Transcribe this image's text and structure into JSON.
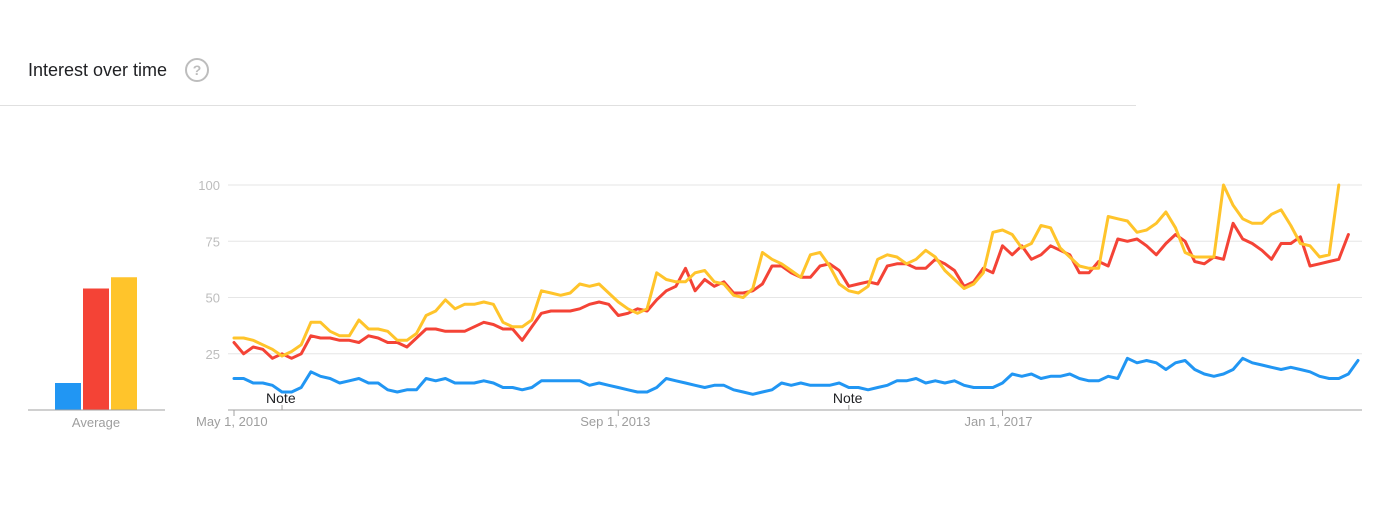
{
  "header": {
    "title": "Interest over time",
    "help_icon": "?"
  },
  "colors": {
    "blue": "#2196f3",
    "red": "#f44336",
    "yellow": "#ffc42b",
    "grid": "#e6e6e6",
    "axis": "#a0a0a0"
  },
  "averages": {
    "label": "Average",
    "values": [
      12,
      54,
      59
    ]
  },
  "notes": [
    {
      "label": "Note",
      "date": "2010-10"
    },
    {
      "label": "Note",
      "date": "2015-09"
    }
  ],
  "chart_data": {
    "type": "line",
    "x_start": "2010-05",
    "x_interval": "month",
    "xtick_labels": [
      {
        "label": "May 1, 2010",
        "date": "2010-05"
      },
      {
        "label": "Sep 1, 2013",
        "date": "2013-09"
      },
      {
        "label": "Jan 1, 2017",
        "date": "2017-01"
      }
    ],
    "yticks": [
      25,
      50,
      75,
      100
    ],
    "ylim": [
      0,
      100
    ],
    "grid": true,
    "series": [
      {
        "color": "#2196f3",
        "values": [
          14,
          14,
          12,
          12,
          11,
          8,
          8,
          10,
          17,
          15,
          14,
          12,
          13,
          14,
          12,
          12,
          9,
          8,
          9,
          9,
          14,
          13,
          14,
          12,
          12,
          12,
          13,
          12,
          10,
          10,
          9,
          10,
          13,
          13,
          13,
          13,
          13,
          11,
          12,
          11,
          10,
          9,
          8,
          8,
          10,
          14,
          13,
          12,
          11,
          10,
          11,
          11,
          9,
          8,
          7,
          8,
          9,
          12,
          11,
          12,
          11,
          11,
          11,
          12,
          10,
          10,
          9,
          10,
          11,
          13,
          13,
          14,
          12,
          13,
          12,
          13,
          11,
          10,
          10,
          10,
          12,
          16,
          15,
          16,
          14,
          15,
          15,
          16,
          14,
          13,
          13,
          15,
          14,
          23,
          21,
          22,
          21,
          18,
          21,
          22,
          18,
          16,
          15,
          16,
          18,
          23,
          21,
          20,
          19,
          18,
          19,
          18,
          17,
          15,
          14,
          14,
          16,
          22
        ]
      },
      {
        "color": "#f44336",
        "values": [
          30,
          25,
          28,
          27,
          23,
          25,
          23,
          25,
          33,
          32,
          32,
          31,
          31,
          30,
          33,
          32,
          30,
          30,
          28,
          32,
          36,
          36,
          35,
          35,
          35,
          37,
          39,
          38,
          36,
          36,
          31,
          37,
          43,
          44,
          44,
          44,
          45,
          47,
          48,
          47,
          42,
          43,
          45,
          44,
          49,
          53,
          55,
          63,
          53,
          58,
          55,
          57,
          52,
          52,
          53,
          56,
          64,
          64,
          61,
          59,
          59,
          64,
          65,
          62,
          55,
          56,
          57,
          56,
          64,
          65,
          65,
          63,
          63,
          67,
          65,
          62,
          55,
          57,
          63,
          61,
          73,
          69,
          73,
          67,
          69,
          73,
          71,
          69,
          61,
          61,
          66,
          64,
          76,
          75,
          76,
          73,
          69,
          74,
          78,
          75,
          66,
          65,
          68,
          67,
          83,
          76,
          74,
          71,
          67,
          74,
          74,
          77,
          64,
          65,
          66,
          67,
          78
        ]
      },
      {
        "color": "#ffc42b",
        "values": [
          32,
          32,
          31,
          29,
          27,
          24,
          26,
          29,
          39,
          39,
          35,
          33,
          33,
          40,
          36,
          36,
          35,
          31,
          31,
          34,
          42,
          44,
          49,
          45,
          47,
          47,
          48,
          47,
          39,
          37,
          37,
          40,
          53,
          52,
          51,
          52,
          56,
          55,
          56,
          52,
          48,
          45,
          43,
          45,
          61,
          58,
          57,
          57,
          61,
          62,
          57,
          56,
          51,
          50,
          54,
          70,
          67,
          65,
          62,
          59,
          69,
          70,
          64,
          56,
          53,
          52,
          55,
          67,
          69,
          68,
          65,
          67,
          71,
          68,
          62,
          58,
          54,
          56,
          61,
          79,
          80,
          78,
          72,
          74,
          82,
          81,
          72,
          68,
          64,
          63,
          63,
          86,
          85,
          84,
          79,
          80,
          83,
          88,
          81,
          70,
          68,
          68,
          68,
          100,
          91,
          85,
          83,
          83,
          87,
          89,
          82,
          74,
          73,
          68,
          69,
          100
        ]
      }
    ]
  }
}
